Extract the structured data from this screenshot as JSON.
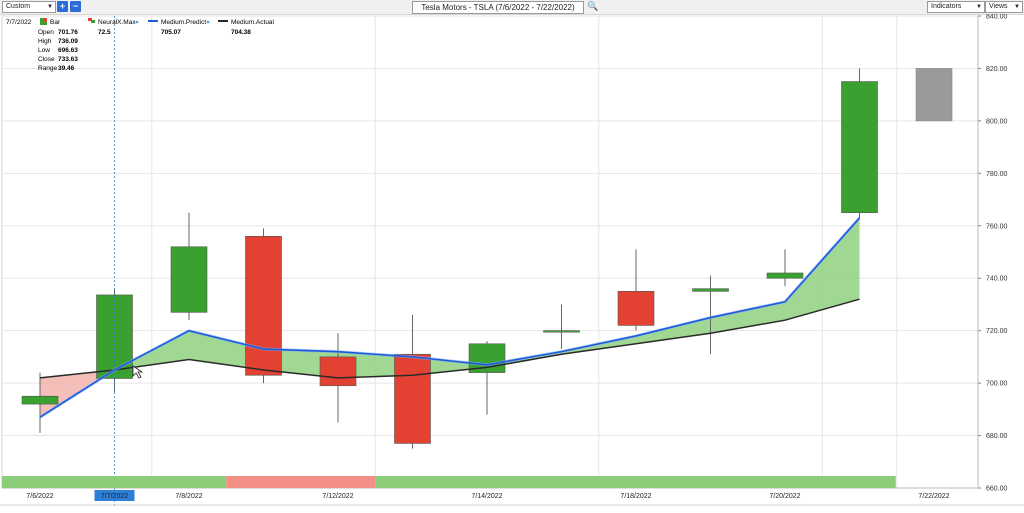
{
  "toolbar": {
    "range_select": "Custom",
    "add_label": "+",
    "remove_label": "−",
    "chart_title": "Tesla Motors - TSLA (7/6/2022 - 7/22/2022)",
    "indicators_label": "Indicators",
    "views_label": "Views"
  },
  "info_panel": {
    "date": "7/7/2022",
    "bar_label": "Bar",
    "open_label": "Open",
    "open_value": "701.76",
    "high_label": "High",
    "high_value": "736.09",
    "low_label": "Low",
    "low_value": "696.63",
    "close_label": "Close",
    "close_value": "733.63",
    "range_label": "Range",
    "range_value": "39.46"
  },
  "legend": [
    {
      "name": "NeuralX.Max",
      "value": "72.5"
    },
    {
      "name": "Medium.Predict",
      "value": "705.07"
    },
    {
      "name": "Medium.Actual",
      "value": "704.38"
    }
  ],
  "colors": {
    "up": "#3aa030",
    "down": "#e34232",
    "predicted": "#9a9a9a",
    "predict_line": "#1e5bd6",
    "actual_line": "#2a2a2a",
    "band_up": "#8fd07f",
    "band_down": "#f2b3ad"
  },
  "chart_data": {
    "type": "candlestick",
    "title": "Tesla Motors - TSLA (7/6/2022 - 7/22/2022)",
    "ylim": [
      660,
      840
    ],
    "yticks": [
      "660.00",
      "680.00",
      "700.00",
      "720.00",
      "740.00",
      "760.00",
      "780.00",
      "800.00",
      "820.00",
      "840.00"
    ],
    "x_labels": [
      "7/6/2022",
      "7/7/2022",
      "7/8/2022",
      "7/12/2022",
      "7/14/2022",
      "7/18/2022",
      "7/20/2022",
      "7/22/2022"
    ],
    "candles": [
      {
        "date": "7/6/2022",
        "open": 692,
        "high": 704,
        "low": 681,
        "close": 695
      },
      {
        "date": "7/7/2022",
        "open": 701.76,
        "high": 736.09,
        "low": 696.63,
        "close": 733.63
      },
      {
        "date": "7/8/2022",
        "open": 727,
        "high": 765,
        "low": 724,
        "close": 752
      },
      {
        "date": "7/11/2022",
        "open": 756,
        "high": 759,
        "low": 700,
        "close": 703
      },
      {
        "date": "7/12/2022",
        "open": 710,
        "high": 719,
        "low": 685,
        "close": 699
      },
      {
        "date": "7/13/2022",
        "open": 711,
        "high": 726,
        "low": 675,
        "close": 677
      },
      {
        "date": "7/14/2022",
        "open": 704,
        "high": 716,
        "low": 688,
        "close": 715
      },
      {
        "date": "7/15/2022",
        "open": 720,
        "high": 730,
        "low": 713,
        "close": 720
      },
      {
        "date": "7/18/2022",
        "open": 735,
        "high": 751,
        "low": 720,
        "close": 722
      },
      {
        "date": "7/19/2022",
        "open": 735,
        "high": 741,
        "low": 711,
        "close": 736
      },
      {
        "date": "7/20/2022",
        "open": 740,
        "high": 751,
        "low": 737,
        "close": 742
      },
      {
        "date": "7/21/2022",
        "open": 765,
        "high": 820,
        "low": 763,
        "close": 815
      },
      {
        "date": "7/22/2022",
        "open": 800,
        "high": 820,
        "low": 800,
        "close": 820,
        "predicted": true
      }
    ],
    "series": [
      {
        "name": "Medium.Predict",
        "values": [
          687,
          705,
          720,
          713,
          712,
          710,
          707,
          712,
          718,
          725,
          731,
          763
        ]
      },
      {
        "name": "Medium.Actual",
        "values": [
          702,
          705,
          709,
          705,
          702,
          703,
          706,
          711,
          715,
          719,
          724,
          732
        ]
      }
    ],
    "neuralx_bar": [
      {
        "from": 0,
        "to": 3,
        "signal": "up"
      },
      {
        "from": 3,
        "to": 5,
        "signal": "down"
      },
      {
        "from": 5,
        "to": 12,
        "signal": "up"
      }
    ],
    "crosshair_date": "7/7/2022",
    "grid": true
  }
}
